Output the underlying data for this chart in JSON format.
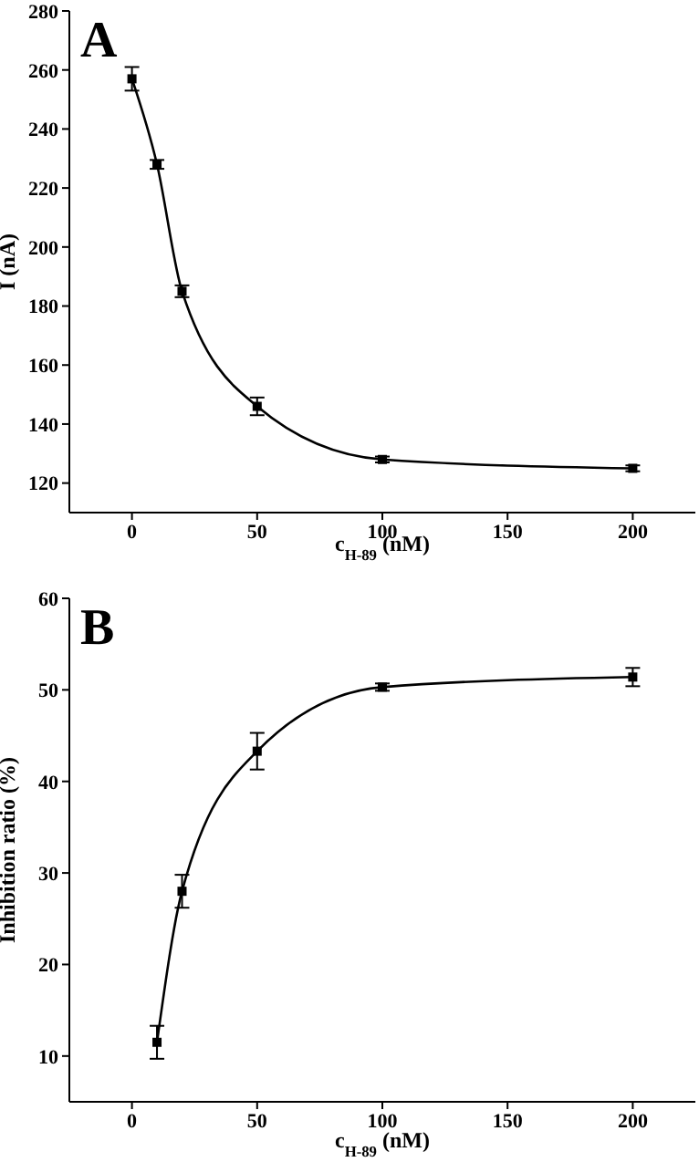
{
  "chart_data": [
    {
      "type": "line",
      "annotations": [
        "A"
      ],
      "xlabel": "c$_{H-89}$ (nM)",
      "ylabel": "I (nA)",
      "x": [
        0,
        10,
        20,
        50,
        100,
        200
      ],
      "series": [
        {
          "color": "#000000",
          "values": [
            257,
            228,
            185,
            146,
            128,
            125
          ],
          "errors": [
            4,
            1.5,
            2,
            3,
            1,
            1
          ]
        }
      ],
      "xlim": [
        -25,
        225
      ],
      "xticks": [
        0,
        50,
        100,
        150,
        200
      ],
      "ylim": [
        110,
        280
      ],
      "yticks": [
        120,
        140,
        160,
        180,
        200,
        220,
        240,
        260,
        280
      ],
      "grid": false,
      "legend": false,
      "marker": "square",
      "line_style": "solid"
    },
    {
      "type": "line",
      "annotations": [
        "B"
      ],
      "xlabel": "c$_{H-89}$ (nM)",
      "ylabel": "Inhibition ratio (%)",
      "x": [
        10,
        20,
        50,
        100,
        200
      ],
      "series": [
        {
          "color": "#000000",
          "values": [
            11.5,
            28,
            43.3,
            50.3,
            51.4
          ],
          "errors": [
            1.8,
            1.8,
            2,
            0.4,
            1
          ]
        }
      ],
      "xlim": [
        -25,
        225
      ],
      "xticks": [
        0,
        50,
        100,
        150,
        200
      ],
      "ylim": [
        5,
        60
      ],
      "yticks": [
        10,
        20,
        30,
        40,
        50,
        60
      ],
      "grid": false,
      "legend": false,
      "marker": "square",
      "line_style": "solid"
    }
  ]
}
